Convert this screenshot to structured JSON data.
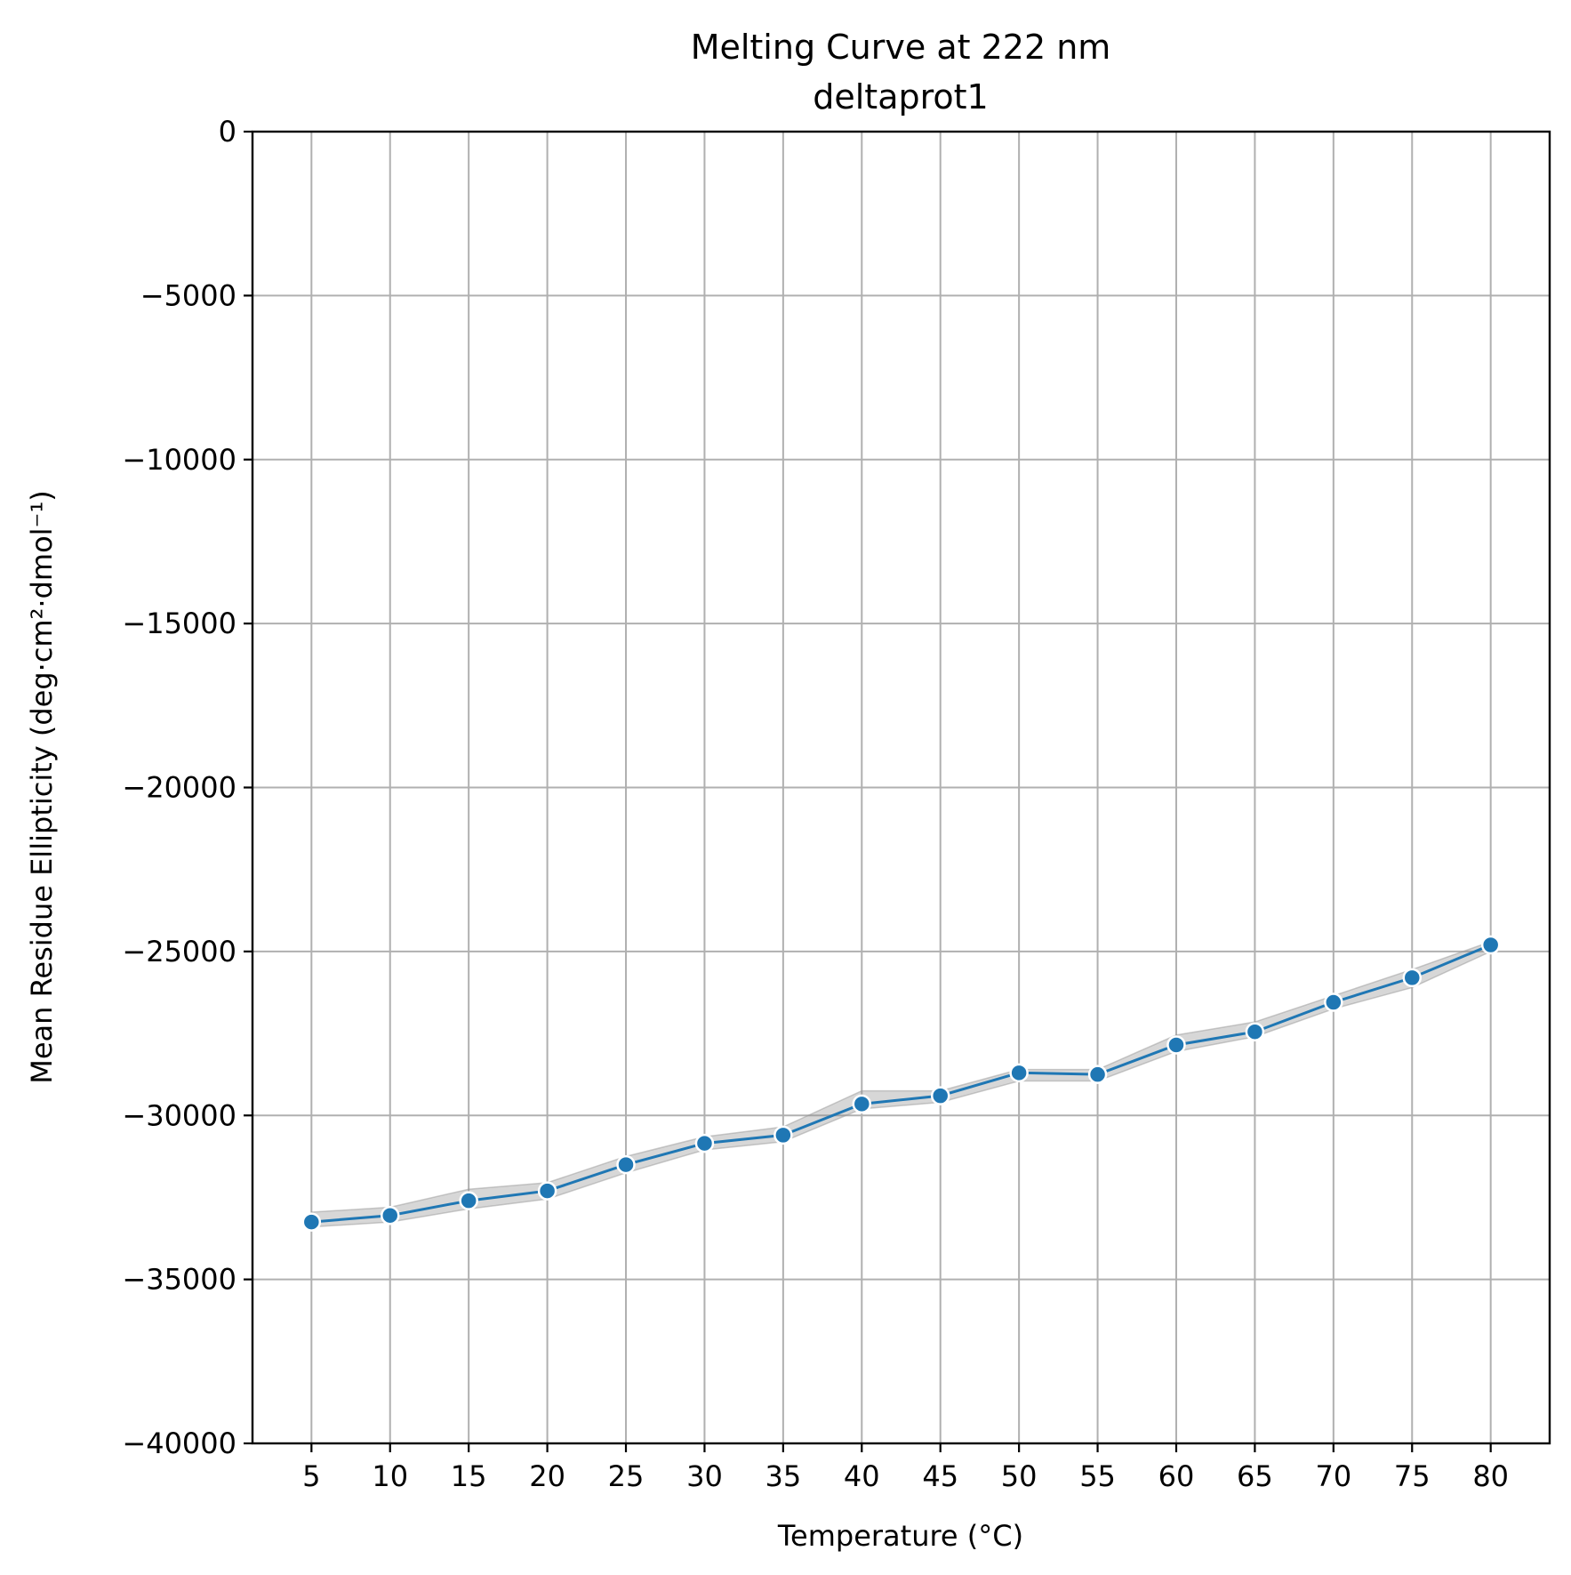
{
  "chart_data": {
    "type": "line",
    "title": "Melting Curve at 222 nm",
    "subtitle": "deltaprot1",
    "xlabel": "Temperature (°C)",
    "ylabel": "Mean Residue Ellipticity (deg·cm²·dmol⁻¹)",
    "xlim": [
      1.25,
      83.75
    ],
    "ylim": [
      -40000,
      0
    ],
    "grid": true,
    "x": [
      5,
      10,
      15,
      20,
      25,
      30,
      35,
      40,
      45,
      50,
      55,
      60,
      65,
      70,
      75,
      80
    ],
    "x_tick_labels": [
      "5",
      "10",
      "15",
      "20",
      "25",
      "30",
      "35",
      "40",
      "45",
      "50",
      "55",
      "60",
      "65",
      "70",
      "75",
      "80"
    ],
    "y_ticks": [
      0,
      -5000,
      -10000,
      -15000,
      -20000,
      -25000,
      -30000,
      -35000,
      -40000
    ],
    "y_tick_labels": [
      "0",
      "−5000",
      "−10000",
      "−15000",
      "−20000",
      "−25000",
      "−30000",
      "−35000",
      "−40000"
    ],
    "series": [
      {
        "values": [
          -33250,
          -33050,
          -32600,
          -32300,
          -31500,
          -30850,
          -30600,
          -29650,
          -29400,
          -28700,
          -28750,
          -27850,
          -27450,
          -26550,
          -25800,
          -24800
        ],
        "band_upper": [
          -32950,
          -32800,
          -32250,
          -32050,
          -31250,
          -30650,
          -30350,
          -29250,
          -29250,
          -28600,
          -28600,
          -27550,
          -27150,
          -26350,
          -25550,
          -24700
        ],
        "band_lower": [
          -33400,
          -33250,
          -32850,
          -32550,
          -31750,
          -31050,
          -30800,
          -29800,
          -29600,
          -28950,
          -28950,
          -28050,
          -27600,
          -26750,
          -26100,
          -25000
        ],
        "color": "#1f77b4"
      }
    ]
  }
}
